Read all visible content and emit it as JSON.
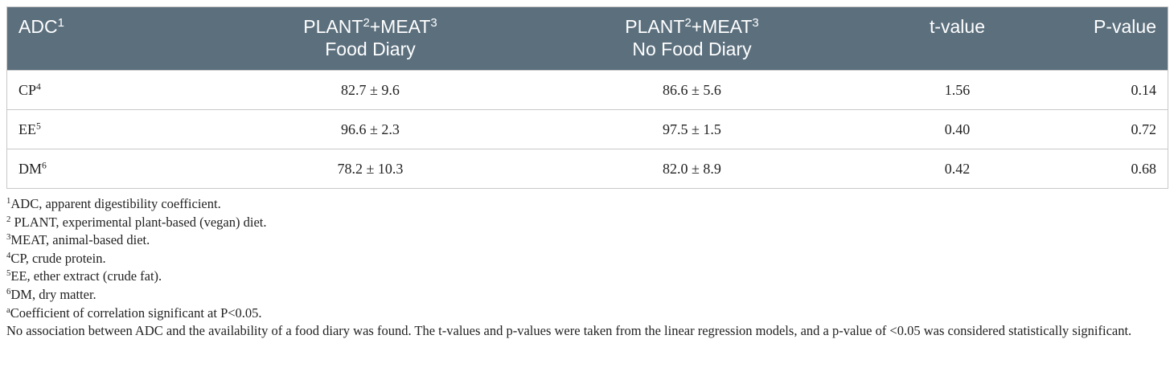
{
  "table": {
    "header": [
      {
        "lines": [
          [
            {
              "text": "ADC"
            },
            {
              "sup": "1"
            }
          ]
        ]
      },
      {
        "lines": [
          [
            {
              "text": "PLANT"
            },
            {
              "sup": "2"
            },
            {
              "text": "+MEAT"
            },
            {
              "sup": "3"
            }
          ],
          [
            {
              "text": "Food Diary"
            }
          ]
        ]
      },
      {
        "lines": [
          [
            {
              "text": "PLANT"
            },
            {
              "sup": "2"
            },
            {
              "text": "+MEAT"
            },
            {
              "sup": "3"
            }
          ],
          [
            {
              "text": "No Food Diary"
            }
          ]
        ]
      },
      {
        "lines": [
          [
            {
              "text": "t-value"
            }
          ]
        ]
      },
      {
        "lines": [
          [
            {
              "text": "P-value"
            }
          ]
        ]
      }
    ],
    "rows": [
      [
        [
          {
            "text": "CP"
          },
          {
            "sup": "4"
          }
        ],
        "82.7 ± 9.6",
        "86.6 ± 5.6",
        "1.56",
        "0.14"
      ],
      [
        [
          {
            "text": "EE"
          },
          {
            "sup": "5"
          }
        ],
        "96.6 ± 2.3",
        "97.5 ± 1.5",
        "0.40",
        "0.72"
      ],
      [
        [
          {
            "text": "DM"
          },
          {
            "sup": "6"
          }
        ],
        "78.2 ± 10.3",
        "82.0 ± 8.9",
        "0.42",
        "0.68"
      ]
    ],
    "footnotes": [
      [
        {
          "sup": "1"
        },
        {
          "text": "ADC, apparent digestibility coefficient."
        }
      ],
      [
        {
          "sup": "2"
        },
        {
          "text": " PLANT, experimental plant-based (vegan) diet."
        }
      ],
      [
        {
          "sup": "3"
        },
        {
          "text": "MEAT, animal-based diet."
        }
      ],
      [
        {
          "sup": "4"
        },
        {
          "text": "CP, crude protein."
        }
      ],
      [
        {
          "sup": "5"
        },
        {
          "text": "EE, ether extract (crude fat)."
        }
      ],
      [
        {
          "sup": "6"
        },
        {
          "text": "DM, dry matter."
        }
      ],
      [
        {
          "sup": "a"
        },
        {
          "text": "Coefficient of correlation significant at P<0.05."
        }
      ],
      [
        {
          "text": "No association between ADC and the availability of a food diary was found. The t-values and p-values were taken from the linear regression models, and a p-value of <0.05 was considered statistically significant."
        }
      ]
    ]
  }
}
